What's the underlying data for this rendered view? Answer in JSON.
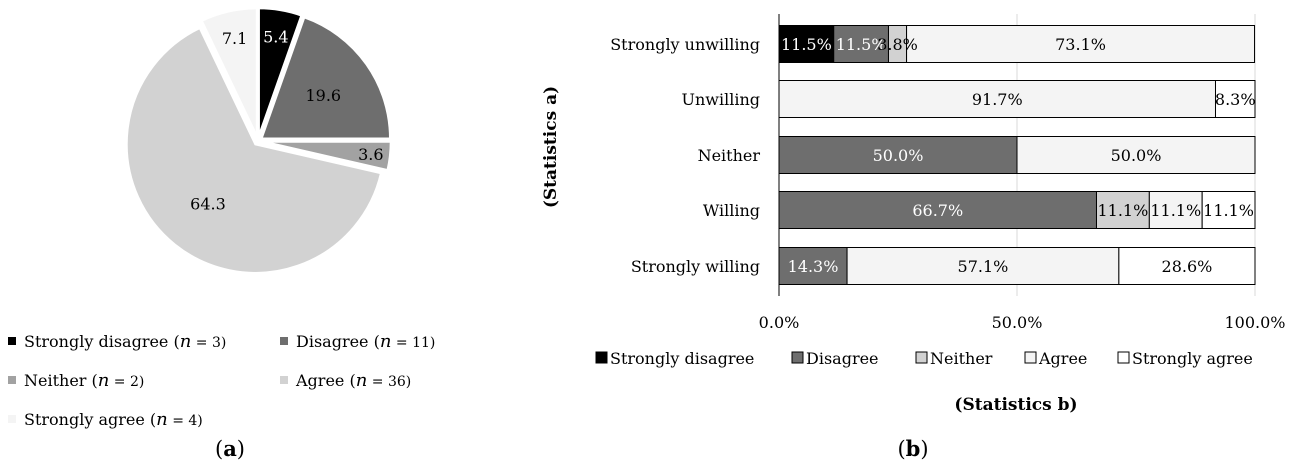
{
  "chart_data": [
    {
      "type": "pie",
      "panel_label": "a",
      "slices": [
        {
          "name": "Strongly disagree",
          "n": 3,
          "value": 5.4,
          "label": "5.4",
          "color": "#000000",
          "text_color": "#ffffff"
        },
        {
          "name": "Disagree",
          "n": 11,
          "value": 19.6,
          "label": "19.6",
          "color": "#6e6e6e",
          "text_color": "#000000"
        },
        {
          "name": "Neither",
          "n": 2,
          "value": 3.6,
          "label": "3.6",
          "color": "#a2a2a2",
          "text_color": "#000000"
        },
        {
          "name": "Agree",
          "n": 36,
          "value": 64.3,
          "label": "64.3",
          "color": "#d2d2d2",
          "text_color": "#000000"
        },
        {
          "name": "Strongly agree",
          "n": 4,
          "value": 7.1,
          "label": "7.1",
          "color": "#f4f4f4",
          "text_color": "#000000"
        }
      ],
      "legend": [
        {
          "label": "Strongly disagree",
          "n_text": "= 3"
        },
        {
          "label": "Disagree",
          "n_text": "= 11"
        },
        {
          "label": "Neither",
          "n_text": "= 2"
        },
        {
          "label": "Agree",
          "n_text": "= 36"
        },
        {
          "label": "Strongly agree",
          "n_text": "= 4"
        }
      ],
      "legend_n_symbol": "n",
      "legend_placement": "bottom"
    },
    {
      "type": "bar",
      "orientation": "horizontal",
      "stacked": true,
      "panel_label": "b",
      "xlabel": "(Statistics b)",
      "ylabel": "(Statistics a)",
      "xlim": [
        0,
        100
      ],
      "xticks": [
        "0.0%",
        "50.0%",
        "100.0%"
      ],
      "categories": [
        "Strongly unwilling",
        "Unwilling",
        "Neither",
        "Willing",
        "Strongly willing"
      ],
      "series": [
        {
          "name": "Strongly disagree",
          "color": "#000000",
          "text_color": "#ffffff",
          "values": [
            11.5,
            0,
            0,
            0,
            0
          ],
          "labels": [
            "11.5%",
            "",
            "",
            "",
            ""
          ]
        },
        {
          "name": "Disagree",
          "color": "#6e6e6e",
          "text_color": "#ffffff",
          "values": [
            11.5,
            0,
            50.0,
            66.7,
            14.3
          ],
          "labels": [
            "11.5%",
            "",
            "50.0%",
            "66.7%",
            "14.3%"
          ]
        },
        {
          "name": "Neither",
          "color": "#d2d2d2",
          "text_color": "#000000",
          "values": [
            3.8,
            0,
            0,
            11.1,
            0
          ],
          "labels": [
            "3.8%",
            "",
            "",
            "11.1%",
            ""
          ]
        },
        {
          "name": "Agree",
          "color": "#f4f4f4",
          "text_color": "#000000",
          "values": [
            73.1,
            91.7,
            50.0,
            11.1,
            57.1
          ],
          "labels": [
            "73.1%",
            "91.7%",
            "50.0%",
            "11.1%",
            "57.1%"
          ]
        },
        {
          "name": "Strongly agree",
          "color": "#ffffff",
          "text_color": "#000000",
          "values": [
            0,
            8.3,
            0,
            11.1,
            28.6
          ],
          "labels": [
            "",
            "8.3%",
            "",
            "11.1%",
            "28.6%"
          ]
        }
      ],
      "grid": true,
      "legend_placement": "bottom"
    }
  ]
}
